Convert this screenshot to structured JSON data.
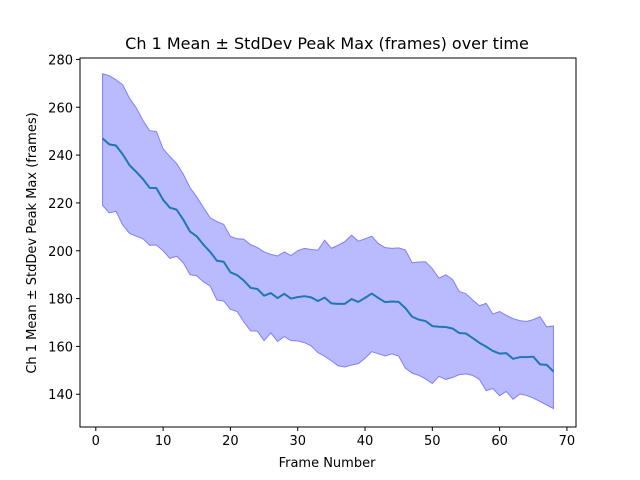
{
  "chart_data": {
    "type": "line",
    "title": "Ch 1 Mean ± StdDev Peak Max (frames) over time",
    "xlabel": "Frame Number",
    "ylabel": "Ch 1 Mean ± StdDev Peak Max (frames)",
    "xlim": [
      -2.35,
      71.35
    ],
    "ylim": [
      126.3,
      280.6
    ],
    "xticks": [
      0,
      10,
      20,
      30,
      40,
      50,
      60,
      70
    ],
    "yticks": [
      140,
      160,
      180,
      200,
      220,
      240,
      260,
      280
    ],
    "grid": false,
    "legend": "none",
    "colors": {
      "line": "#1f77b4",
      "band": "#0000ff",
      "band_opacity": 0.27,
      "band_edge": "#7f7fff"
    },
    "series": [
      {
        "x": [
          1,
          2,
          3,
          4,
          5,
          6,
          7,
          8,
          9,
          10,
          11,
          12,
          13,
          14,
          15,
          16,
          17,
          18,
          19,
          20,
          21,
          22,
          23,
          24,
          25,
          26,
          27,
          28,
          29,
          30,
          31,
          32,
          33,
          34,
          35,
          36,
          37,
          38,
          39,
          40,
          41,
          42,
          43,
          44,
          45,
          46,
          47,
          48,
          49,
          50,
          51,
          52,
          53,
          54,
          55,
          56,
          57,
          58,
          59,
          60,
          61,
          62,
          63,
          64,
          65,
          66,
          67,
          68
        ],
        "mean": [
          247.0,
          244.5,
          244.0,
          240.3,
          235.8,
          233.0,
          230.0,
          226.3,
          226.2,
          221.3,
          218.0,
          217.2,
          213.0,
          208.0,
          206.0,
          202.5,
          199.5,
          195.8,
          195.4,
          191.0,
          189.8,
          187.5,
          184.5,
          184.0,
          181.2,
          182.3,
          180.2,
          182.0,
          180.0,
          180.6,
          181.0,
          180.5,
          179.0,
          180.4,
          178.0,
          177.8,
          177.8,
          179.8,
          178.6,
          180.3,
          182.1,
          180.2,
          178.5,
          178.8,
          178.6,
          176.0,
          172.4,
          171.2,
          170.6,
          168.5,
          168.2,
          168.1,
          167.5,
          165.6,
          165.4,
          163.5,
          161.5,
          159.9,
          158.1,
          157.0,
          157.2,
          154.8,
          155.5,
          155.5,
          155.7,
          152.5,
          152.3,
          149.5
        ],
        "upper": [
          274.0,
          273.2,
          271.5,
          269.4,
          263.8,
          259.8,
          254.5,
          250.2,
          249.9,
          242.6,
          239.4,
          236.5,
          232.0,
          226.4,
          222.5,
          218.0,
          213.8,
          212.2,
          211.0,
          206.0,
          205.0,
          204.8,
          202.5,
          201.4,
          199.5,
          198.5,
          197.8,
          199.5,
          198.0,
          200.0,
          201.0,
          200.5,
          200.2,
          204.4,
          201.0,
          202.3,
          203.8,
          206.5,
          204.0,
          205.0,
          206.1,
          203.0,
          201.3,
          201.0,
          201.2,
          200.3,
          195.0,
          195.3,
          195.4,
          192.5,
          188.5,
          190.0,
          188.0,
          183.0,
          182.0,
          179.4,
          177.0,
          178.0,
          173.5,
          174.6,
          173.0,
          171.6,
          170.8,
          170.4,
          171.2,
          172.4,
          168.2,
          168.5
        ],
        "lower": [
          219.0,
          215.8,
          216.5,
          210.8,
          207.3,
          206.1,
          205.0,
          202.3,
          202.4,
          200.0,
          196.8,
          197.7,
          195.0,
          190.0,
          189.5,
          187.0,
          185.2,
          179.4,
          179.0,
          175.5,
          174.6,
          170.2,
          166.5,
          166.4,
          162.4,
          165.7,
          162.1,
          164.1,
          162.4,
          162.3,
          161.6,
          160.2,
          157.4,
          155.9,
          154.0,
          151.9,
          151.4,
          152.2,
          152.8,
          155.0,
          157.8,
          156.9,
          156.0,
          156.9,
          155.9,
          150.9,
          148.8,
          147.9,
          146.4,
          144.5,
          147.5,
          146.2,
          147.0,
          148.2,
          148.5,
          147.9,
          146.2,
          141.5,
          142.4,
          139.4,
          141.2,
          137.9,
          140.1,
          139.5,
          138.4,
          137.0,
          135.5,
          134.0
        ]
      }
    ]
  }
}
